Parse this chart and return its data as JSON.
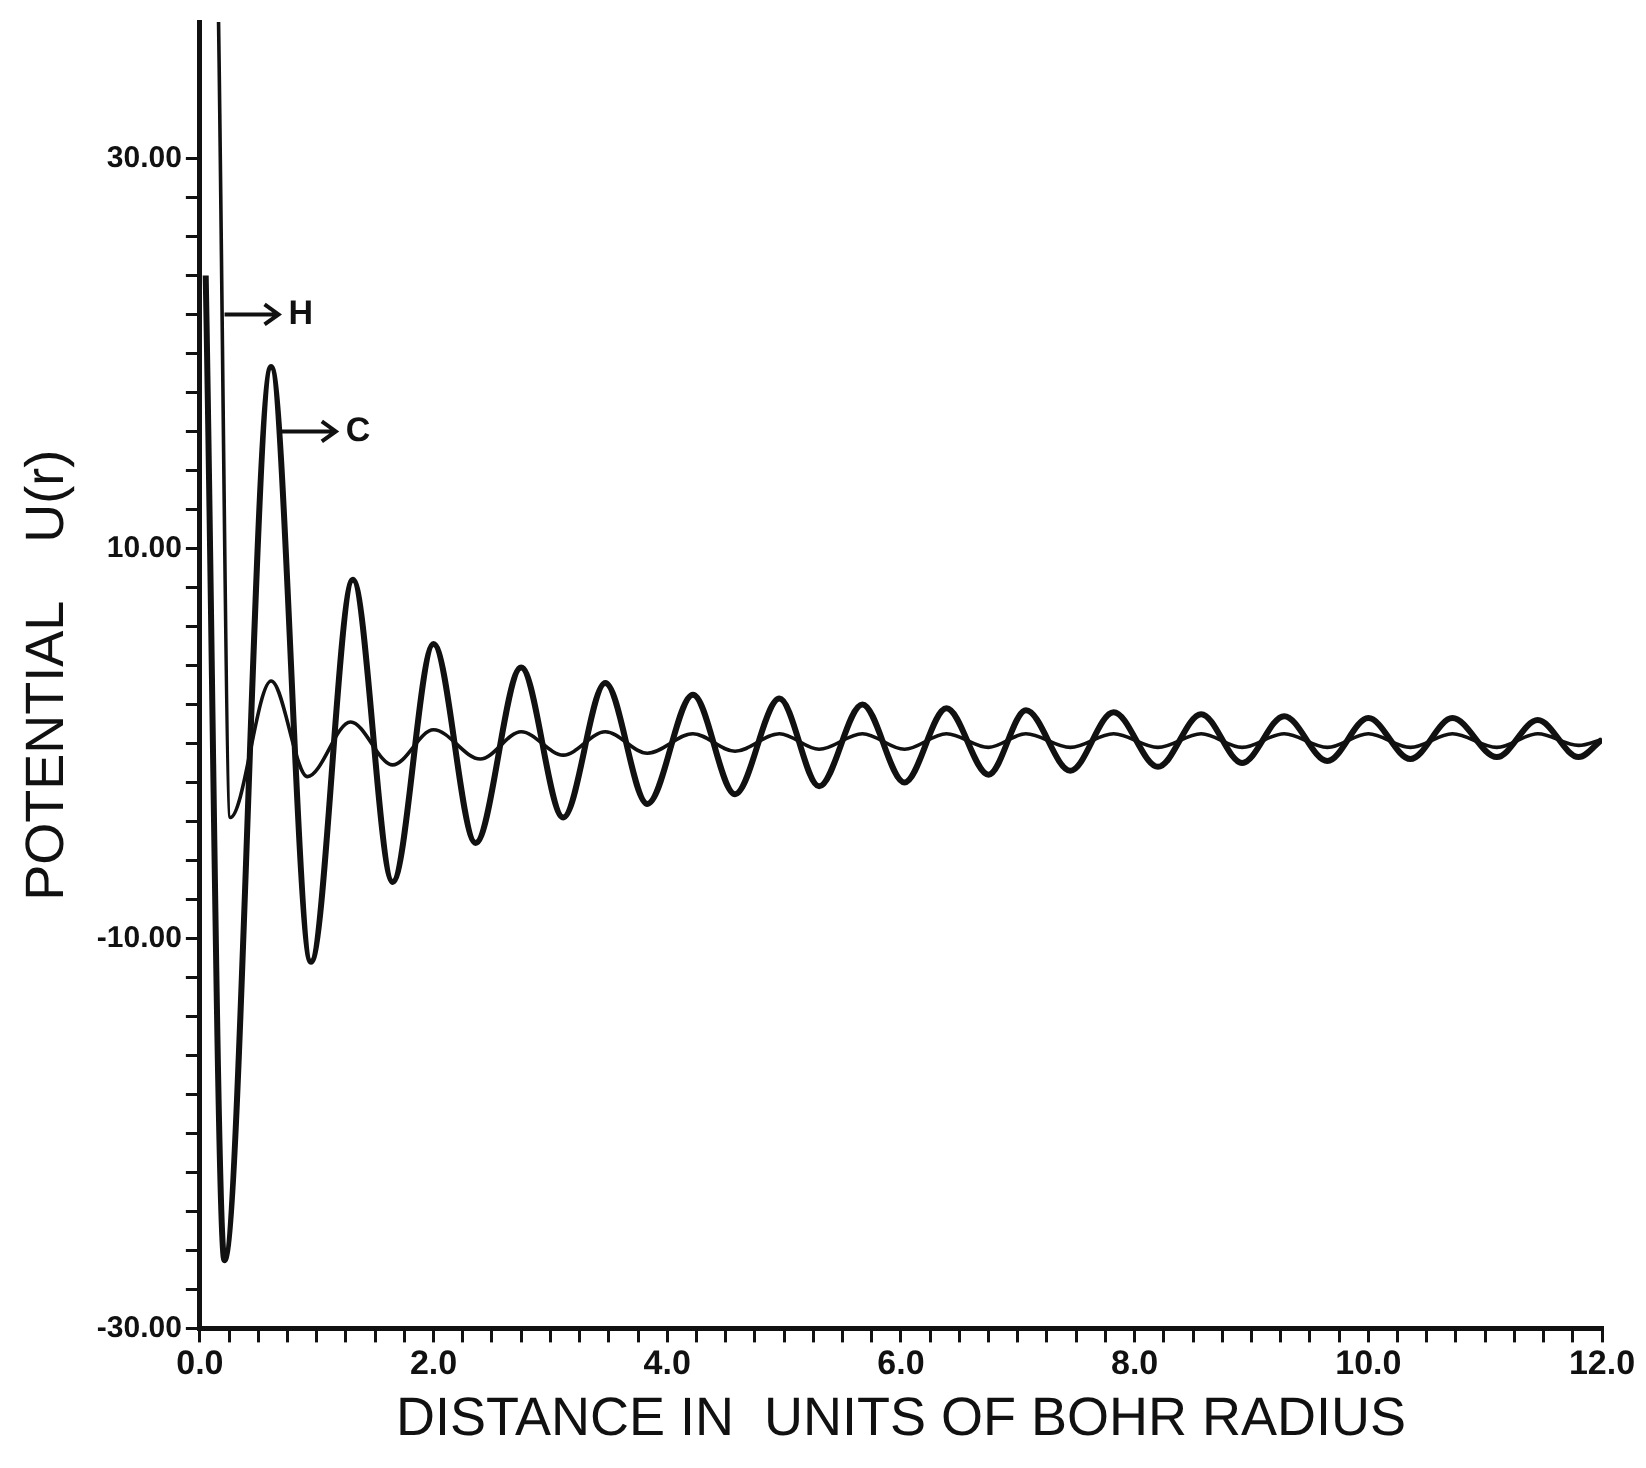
{
  "chart_data": {
    "type": "line",
    "xlabel": "DISTANCE IN  UNITS OF BOHR RADIUS",
    "ylabel": "POTENTIAL    U(r)",
    "xlim": [
      0,
      12
    ],
    "ylim": [
      -30,
      37
    ],
    "xticks": [
      {
        "value": 0,
        "label": "0.0"
      },
      {
        "value": 0.25,
        "label": null
      },
      {
        "value": 0.5,
        "label": null
      },
      {
        "value": 0.75,
        "label": null
      },
      {
        "value": 1,
        "label": null
      },
      {
        "value": 1.25,
        "label": null
      },
      {
        "value": 1.5,
        "label": null
      },
      {
        "value": 1.75,
        "label": null
      },
      {
        "value": 2,
        "label": "2.0"
      },
      {
        "value": 2.25,
        "label": null
      },
      {
        "value": 2.5,
        "label": null
      },
      {
        "value": 2.75,
        "label": null
      },
      {
        "value": 3,
        "label": null
      },
      {
        "value": 3.25,
        "label": null
      },
      {
        "value": 3.5,
        "label": null
      },
      {
        "value": 3.75,
        "label": null
      },
      {
        "value": 4,
        "label": "4.0"
      },
      {
        "value": 4.25,
        "label": null
      },
      {
        "value": 4.5,
        "label": null
      },
      {
        "value": 4.75,
        "label": null
      },
      {
        "value": 5,
        "label": null
      },
      {
        "value": 5.25,
        "label": null
      },
      {
        "value": 5.5,
        "label": null
      },
      {
        "value": 5.75,
        "label": null
      },
      {
        "value": 6,
        "label": "6.0"
      },
      {
        "value": 6.25,
        "label": null
      },
      {
        "value": 6.5,
        "label": null
      },
      {
        "value": 6.75,
        "label": null
      },
      {
        "value": 7,
        "label": null
      },
      {
        "value": 7.25,
        "label": null
      },
      {
        "value": 7.5,
        "label": null
      },
      {
        "value": 7.75,
        "label": null
      },
      {
        "value": 8,
        "label": "8.0"
      },
      {
        "value": 8.25,
        "label": null
      },
      {
        "value": 8.5,
        "label": null
      },
      {
        "value": 8.75,
        "label": null
      },
      {
        "value": 9,
        "label": null
      },
      {
        "value": 9.25,
        "label": null
      },
      {
        "value": 9.5,
        "label": null
      },
      {
        "value": 9.75,
        "label": null
      },
      {
        "value": 10,
        "label": "10.0"
      },
      {
        "value": 10.25,
        "label": null
      },
      {
        "value": 10.5,
        "label": null
      },
      {
        "value": 10.75,
        "label": null
      },
      {
        "value": 11,
        "label": null
      },
      {
        "value": 11.25,
        "label": null
      },
      {
        "value": 11.5,
        "label": null
      },
      {
        "value": 11.75,
        "label": null
      },
      {
        "value": 12,
        "label": "12.0"
      }
    ],
    "yticks": [
      {
        "value": -30,
        "label": "-30.00"
      },
      {
        "value": -28,
        "label": null
      },
      {
        "value": -26,
        "label": null
      },
      {
        "value": -24,
        "label": null
      },
      {
        "value": -22,
        "label": null
      },
      {
        "value": -20,
        "label": null
      },
      {
        "value": -18,
        "label": null
      },
      {
        "value": -16,
        "label": null
      },
      {
        "value": -14,
        "label": null
      },
      {
        "value": -12,
        "label": null
      },
      {
        "value": -10,
        "label": "-10.00"
      },
      {
        "value": -8,
        "label": null
      },
      {
        "value": -6,
        "label": null
      },
      {
        "value": -4,
        "label": null
      },
      {
        "value": -2,
        "label": null
      },
      {
        "value": 0,
        "label": null
      },
      {
        "value": 2,
        "label": null
      },
      {
        "value": 4,
        "label": null
      },
      {
        "value": 6,
        "label": null
      },
      {
        "value": 8,
        "label": null
      },
      {
        "value": 10,
        "label": "10.00"
      },
      {
        "value": 12,
        "label": null
      },
      {
        "value": 14,
        "label": null
      },
      {
        "value": 16,
        "label": null
      },
      {
        "value": 18,
        "label": null
      },
      {
        "value": 20,
        "label": null
      },
      {
        "value": 22,
        "label": null
      },
      {
        "value": 24,
        "label": null
      },
      {
        "value": 26,
        "label": null
      },
      {
        "value": 28,
        "label": null
      },
      {
        "value": 30,
        "label": "30.00"
      }
    ],
    "grid": false,
    "legend": false,
    "marker": "none",
    "line_style": "solid",
    "annotations": [
      {
        "text": "H",
        "x": 0.16,
        "y": 22
      },
      {
        "text": "C",
        "x": 0.65,
        "y": 16
      }
    ],
    "series": [
      {
        "color": "#111111",
        "x": [
          0.16,
          0.26,
          0.61,
          0.92,
          1.29,
          1.65,
          2.0,
          2.4,
          2.75,
          3.11,
          3.47,
          3.83,
          4.22,
          4.58,
          4.96,
          5.3,
          5.67,
          6.03,
          6.39,
          6.75,
          7.07,
          7.45,
          7.82,
          8.2,
          8.57,
          8.92,
          9.28,
          9.65,
          10.0,
          10.36,
          10.72,
          11.1,
          11.45,
          11.8,
          12.0
        ],
        "values": [
          37,
          -3.8,
          3.2,
          -1.7,
          1.1,
          -1.1,
          0.7,
          -0.8,
          0.6,
          -0.6,
          0.6,
          -0.5,
          0.5,
          -0.4,
          0.5,
          -0.3,
          0.5,
          -0.3,
          0.5,
          -0.2,
          0.5,
          -0.2,
          0.5,
          -0.2,
          0.5,
          -0.2,
          0.5,
          -0.2,
          0.5,
          -0.2,
          0.5,
          -0.2,
          0.5,
          -0.1,
          0.2
        ]
      },
      {
        "color": "#111111",
        "x": [
          0.05,
          0.21,
          0.61,
          0.95,
          1.31,
          1.65,
          2.0,
          2.36,
          2.75,
          3.11,
          3.47,
          3.83,
          4.22,
          4.58,
          4.96,
          5.3,
          5.67,
          6.03,
          6.39,
          6.75,
          7.07,
          7.45,
          7.82,
          8.2,
          8.57,
          8.92,
          9.28,
          9.65,
          10.0,
          10.36,
          10.72,
          11.1,
          11.45,
          11.8,
          12.0
        ],
        "values": [
          24,
          -26.5,
          19.3,
          -11.2,
          8.4,
          -7.1,
          5.1,
          -5.1,
          3.9,
          -3.8,
          3.1,
          -3.1,
          2.5,
          -2.6,
          2.3,
          -2.2,
          2.0,
          -2.0,
          1.8,
          -1.6,
          1.7,
          -1.4,
          1.6,
          -1.2,
          1.5,
          -1.0,
          1.4,
          -0.9,
          1.3,
          -0.8,
          1.3,
          -0.7,
          1.2,
          -0.7,
          0.2
        ]
      }
    ]
  }
}
